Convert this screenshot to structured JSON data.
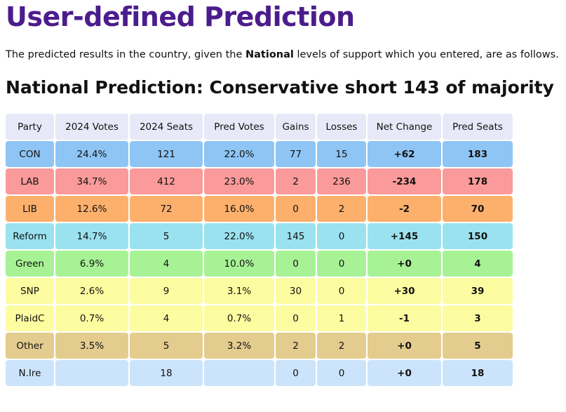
{
  "header": {
    "title": "User-defined Prediction",
    "intro_before": "The predicted results in the country, given the ",
    "intro_bold": "National",
    "intro_after": " levels of support which you entered, are as follows."
  },
  "prediction_title": "National Prediction: Conservative short 143 of majority",
  "table": {
    "headers": [
      "Party",
      "2024 Votes",
      "2024 Seats",
      "Pred Votes",
      "Gains",
      "Losses",
      "Net Change",
      "Pred Seats"
    ],
    "rows": [
      {
        "party": "CON",
        "votes2024": "24.4%",
        "seats2024": "121",
        "pred_votes": "22.0%",
        "gains": "77",
        "losses": "15",
        "net_change": "+62",
        "pred_seats": "183",
        "color": "#8ec5f5"
      },
      {
        "party": "LAB",
        "votes2024": "34.7%",
        "seats2024": "412",
        "pred_votes": "23.0%",
        "gains": "2",
        "losses": "236",
        "net_change": "-234",
        "pred_seats": "178",
        "color": "#fb9a9a"
      },
      {
        "party": "LIB",
        "votes2024": "12.6%",
        "seats2024": "72",
        "pred_votes": "16.0%",
        "gains": "0",
        "losses": "2",
        "net_change": "-2",
        "pred_seats": "70",
        "color": "#fcb06c"
      },
      {
        "party": "Reform",
        "votes2024": "14.7%",
        "seats2024": "5",
        "pred_votes": "22.0%",
        "gains": "145",
        "losses": "0",
        "net_change": "+145",
        "pred_seats": "150",
        "color": "#9ae2f0"
      },
      {
        "party": "Green",
        "votes2024": "6.9%",
        "seats2024": "4",
        "pred_votes": "10.0%",
        "gains": "0",
        "losses": "0",
        "net_change": "+0",
        "pred_seats": "4",
        "color": "#a8f296"
      },
      {
        "party": "SNP",
        "votes2024": "2.6%",
        "seats2024": "9",
        "pred_votes": "3.1%",
        "gains": "30",
        "losses": "0",
        "net_change": "+30",
        "pred_seats": "39",
        "color": "#fcfca0"
      },
      {
        "party": "PlaidC",
        "votes2024": "0.7%",
        "seats2024": "4",
        "pred_votes": "0.7%",
        "gains": "0",
        "losses": "1",
        "net_change": "-1",
        "pred_seats": "3",
        "color": "#fcfca0"
      },
      {
        "party": "Other",
        "votes2024": "3.5%",
        "seats2024": "5",
        "pred_votes": "3.2%",
        "gains": "2",
        "losses": "2",
        "net_change": "+0",
        "pred_seats": "5",
        "color": "#e3cc8e"
      },
      {
        "party": "N.Ire",
        "votes2024": "",
        "seats2024": "18",
        "pred_votes": "",
        "gains": "0",
        "losses": "0",
        "net_change": "+0",
        "pred_seats": "18",
        "color": "#cce4fb"
      }
    ]
  }
}
